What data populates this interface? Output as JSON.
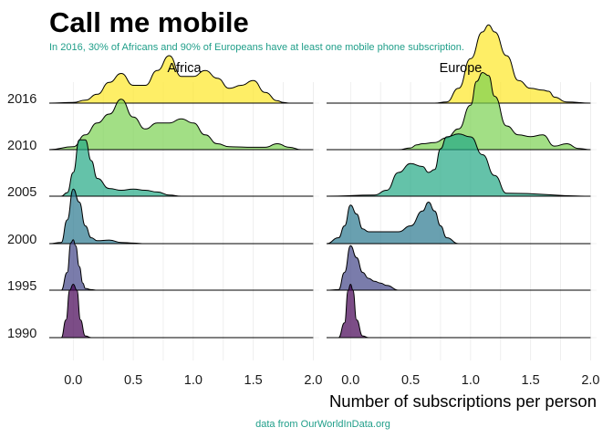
{
  "title": "Call me mobile",
  "subtitle": "In 2016, 30% of Africans and 90% of Europeans have at least one mobile phone subscription.",
  "caption": "data from OurWorldInData.org",
  "chart_data": {
    "type": "ridgeline",
    "xlabel": "Number of subscriptions per person",
    "ylabel": "",
    "xlim": [
      -0.2,
      2.05
    ],
    "xticks": [
      "0.0",
      "0.5",
      "1.0",
      "1.5",
      "2.0"
    ],
    "xtick_values": [
      0,
      0.5,
      1,
      1.5,
      2
    ],
    "years": [
      "2016",
      "2010",
      "2005",
      "2000",
      "1995",
      "1990"
    ],
    "year_colors": {
      "1990": "#440154",
      "1995": "#414487",
      "2000": "#2a788e",
      "2005": "#22a884",
      "2010": "#7ad151",
      "2016": "#fde725"
    },
    "grid": true,
    "panels": [
      {
        "name": "Africa",
        "ridges": [
          {
            "year": "2016",
            "x": [
              -0.2,
              0.0,
              0.1,
              0.2,
              0.3,
              0.4,
              0.5,
              0.6,
              0.7,
              0.8,
              0.9,
              1.0,
              1.1,
              1.2,
              1.3,
              1.4,
              1.5,
              1.6,
              1.7,
              1.75,
              1.8,
              2.0
            ],
            "y": [
              0,
              0.01,
              0.05,
              0.15,
              0.35,
              0.5,
              0.3,
              0.3,
              0.55,
              0.8,
              0.45,
              0.45,
              0.55,
              0.42,
              0.25,
              0.3,
              0.38,
              0.18,
              0.04,
              0.01,
              0,
              0
            ]
          },
          {
            "year": "2010",
            "x": [
              -0.2,
              0.0,
              0.1,
              0.2,
              0.3,
              0.4,
              0.5,
              0.6,
              0.7,
              0.8,
              0.9,
              1.0,
              1.1,
              1.2,
              1.3,
              1.5,
              1.6,
              1.7,
              1.8,
              1.9,
              2.0
            ],
            "y": [
              0,
              0.05,
              0.25,
              0.45,
              0.6,
              0.85,
              0.55,
              0.35,
              0.45,
              0.45,
              0.52,
              0.45,
              0.25,
              0.1,
              0.05,
              0.04,
              0.04,
              0.1,
              0.04,
              0,
              0
            ]
          },
          {
            "year": "2005",
            "x": [
              -0.2,
              -0.1,
              -0.05,
              0.0,
              0.05,
              0.1,
              0.15,
              0.2,
              0.3,
              0.4,
              0.5,
              0.6,
              0.7,
              0.8,
              0.9,
              1.0,
              2.0
            ],
            "y": [
              0,
              0,
              0.06,
              0.4,
              0.95,
              0.95,
              0.6,
              0.3,
              0.13,
              0.1,
              0.12,
              0.1,
              0.07,
              0.02,
              0,
              0,
              0
            ]
          },
          {
            "year": "2000",
            "x": [
              -0.2,
              -0.1,
              -0.05,
              0.0,
              0.05,
              0.1,
              0.15,
              0.2,
              0.3,
              0.4,
              0.5,
              0.6,
              2.0
            ],
            "y": [
              0,
              0.02,
              0.4,
              0.92,
              0.7,
              0.3,
              0.1,
              0.05,
              0.06,
              0.02,
              0.01,
              0,
              0
            ]
          },
          {
            "year": "1995",
            "x": [
              -0.2,
              -0.1,
              -0.05,
              -0.02,
              0.0,
              0.02,
              0.05,
              0.08,
              0.1,
              0.15,
              0.2,
              2.0
            ],
            "y": [
              0,
              0,
              0.3,
              0.8,
              0.85,
              0.75,
              0.4,
              0.12,
              0.03,
              0.01,
              0,
              0
            ]
          },
          {
            "year": "1990",
            "x": [
              -0.2,
              -0.1,
              -0.06,
              -0.03,
              0.0,
              0.03,
              0.06,
              0.1,
              0.15,
              2.0
            ],
            "y": [
              0,
              0,
              0.3,
              0.8,
              0.9,
              0.8,
              0.3,
              0.03,
              0,
              0
            ]
          }
        ]
      },
      {
        "name": "Europe",
        "ridges": [
          {
            "year": "2016",
            "x": [
              -0.2,
              0.7,
              0.8,
              0.9,
              1.0,
              1.1,
              1.15,
              1.2,
              1.3,
              1.4,
              1.5,
              1.6,
              1.65,
              1.7,
              1.8,
              2.0
            ],
            "y": [
              0,
              0,
              0.02,
              0.25,
              0.75,
              1.2,
              1.32,
              1.2,
              0.8,
              0.38,
              0.25,
              0.22,
              0.2,
              0.1,
              0.02,
              0
            ]
          },
          {
            "year": "2010",
            "x": [
              -0.2,
              0.4,
              0.5,
              0.55,
              0.6,
              0.7,
              0.8,
              0.9,
              1.0,
              1.05,
              1.1,
              1.15,
              1.2,
              1.3,
              1.4,
              1.5,
              1.6,
              1.7,
              1.8,
              1.9,
              2.0
            ],
            "y": [
              0,
              0,
              0.03,
              0.08,
              0.1,
              0.12,
              0.2,
              0.35,
              0.75,
              1.15,
              1.3,
              1.25,
              0.9,
              0.4,
              0.25,
              0.22,
              0.25,
              0.06,
              0.1,
              0.02,
              0
            ]
          },
          {
            "year": "2005",
            "x": [
              -0.2,
              0.2,
              0.3,
              0.4,
              0.5,
              0.6,
              0.65,
              0.7,
              0.75,
              0.8,
              0.9,
              1.0,
              1.1,
              1.2,
              1.3,
              2.0
            ],
            "y": [
              0,
              0.02,
              0.1,
              0.4,
              0.55,
              0.5,
              0.4,
              0.45,
              0.8,
              1.0,
              1.05,
              1.0,
              0.7,
              0.35,
              0.05,
              0
            ]
          },
          {
            "year": "2000",
            "x": [
              -0.2,
              -0.1,
              -0.05,
              0.0,
              0.05,
              0.1,
              0.15,
              0.2,
              0.3,
              0.4,
              0.5,
              0.6,
              0.65,
              0.7,
              0.75,
              0.8,
              0.9,
              2.0
            ],
            "y": [
              0,
              0.1,
              0.3,
              0.65,
              0.5,
              0.25,
              0.2,
              0.2,
              0.2,
              0.2,
              0.3,
              0.55,
              0.7,
              0.55,
              0.3,
              0.1,
              0,
              0
            ]
          },
          {
            "year": "1995",
            "x": [
              -0.2,
              -0.1,
              -0.05,
              0.0,
              0.05,
              0.1,
              0.15,
              0.2,
              0.25,
              0.3,
              0.4,
              2.0
            ],
            "y": [
              0,
              0.01,
              0.3,
              0.75,
              0.55,
              0.3,
              0.2,
              0.15,
              0.12,
              0.08,
              0,
              0
            ]
          },
          {
            "year": "1990",
            "x": [
              -0.2,
              -0.1,
              -0.05,
              -0.02,
              0.0,
              0.02,
              0.05,
              0.1,
              0.15,
              2.0
            ],
            "y": [
              0,
              0,
              0.25,
              0.8,
              0.9,
              0.8,
              0.3,
              0.03,
              0,
              0
            ]
          }
        ]
      }
    ]
  }
}
